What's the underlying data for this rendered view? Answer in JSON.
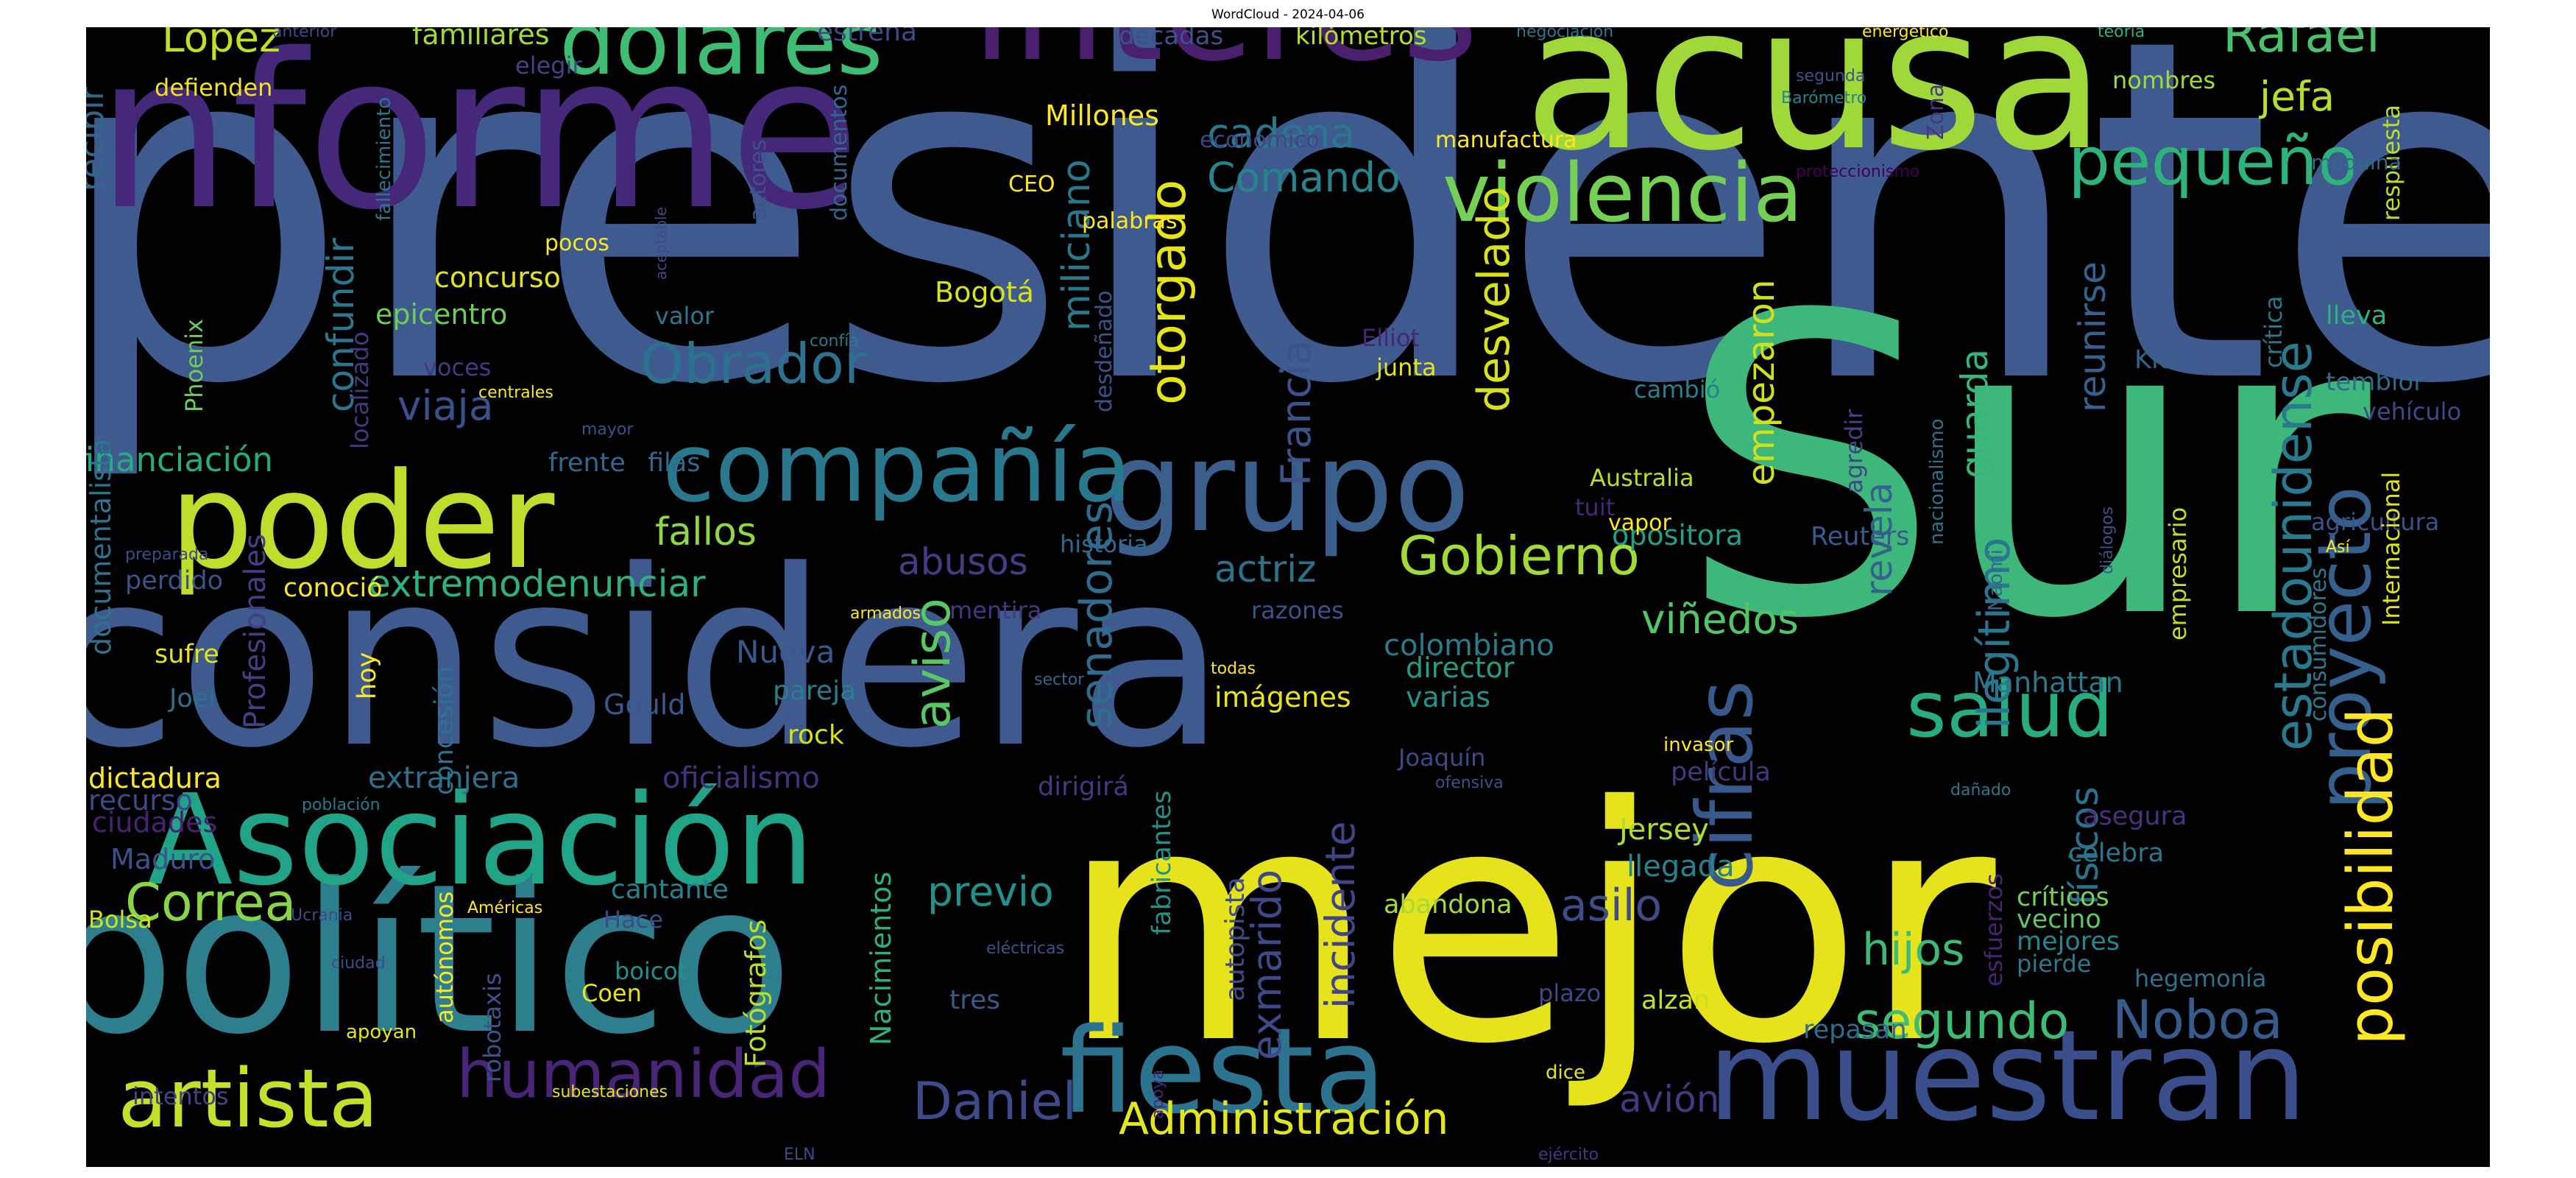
{
  "title": "WordCloud - 2024-04-06",
  "background": "#000000",
  "words": [
    {
      "text": "presidente",
      "color": "#3f5a8f"
    },
    {
      "text": "Sur",
      "color": "#3db87a"
    },
    {
      "text": "mejor",
      "color": "#e6e21b"
    },
    {
      "text": "considera",
      "color": "#3e5a8e"
    },
    {
      "text": "político",
      "color": "#2e7f8e"
    },
    {
      "text": "informe",
      "color": "#46287a"
    },
    {
      "text": "acusa",
      "color": "#a0d83a"
    },
    {
      "text": "interés",
      "color": "#4a1f6e"
    },
    {
      "text": "muestran",
      "color": "#3a4e8c"
    },
    {
      "text": "poder",
      "color": "#bede2d"
    },
    {
      "text": "Asociación",
      "color": "#20a386"
    },
    {
      "text": "grupo",
      "color": "#3a5f8d"
    },
    {
      "text": "fiesta",
      "color": "#2b738e"
    },
    {
      "text": "compañía",
      "color": "#2a788e"
    },
    {
      "text": "dólares",
      "color": "#3fbc73"
    },
    {
      "text": "violencia",
      "color": "#74d055"
    },
    {
      "text": "artista",
      "color": "#c4e02a"
    },
    {
      "text": "humanidad",
      "color": "#482576"
    },
    {
      "text": "salud",
      "color": "#27ad81"
    },
    {
      "text": "cifras",
      "color": "#38598c"
    },
    {
      "text": "pequeño",
      "color": "#2eb37c"
    },
    {
      "text": "proyecto",
      "color": "#35608d"
    },
    {
      "text": "posibilidad",
      "color": "#fde725"
    },
    {
      "text": "Administración",
      "color": "#e1e61d"
    },
    {
      "text": "Obrador",
      "color": "#2c718e"
    },
    {
      "text": "Gobierno",
      "color": "#a2da37"
    },
    {
      "text": "Noboa",
      "color": "#365c8d"
    },
    {
      "text": "Daniel",
      "color": "#3e4a89"
    },
    {
      "text": "estadounidense",
      "color": "#297a8e"
    },
    {
      "text": "Correa",
      "color": "#89d548"
    },
    {
      "text": "otorgado",
      "color": "#e5e419"
    },
    {
      "text": "Rafael",
      "color": "#4ac16d"
    },
    {
      "text": "segundo",
      "color": "#3dbc74"
    },
    {
      "text": "aviso",
      "color": "#58c765"
    },
    {
      "text": "desvelado",
      "color": "#d8e219"
    },
    {
      "text": "ilegítimo",
      "color": "#2a768e"
    },
    {
      "text": "senadores",
      "color": "#2f6c8e"
    },
    {
      "text": "extremodenunciar",
      "color": "#2db27d"
    },
    {
      "text": "López",
      "color": "#c2df23"
    },
    {
      "text": "hijos",
      "color": "#3bbb75"
    },
    {
      "text": "asilo",
      "color": "#3e4c8a"
    },
    {
      "text": "incidente",
      "color": "#414487"
    },
    {
      "text": "exmarido",
      "color": "#3e4989"
    },
    {
      "text": "previo",
      "color": "#21918c"
    },
    {
      "text": "Comando",
      "color": "#25848e"
    },
    {
      "text": "cadena",
      "color": "#2a788e"
    },
    {
      "text": "viñedos",
      "color": "#52c569"
    },
    {
      "text": "fallos",
      "color": "#8fd744"
    },
    {
      "text": "abusos",
      "color": "#433d84"
    },
    {
      "text": "actriz",
      "color": "#2c728e"
    },
    {
      "text": "viaja",
      "color": "#3b518b"
    },
    {
      "text": "jefa",
      "color": "#b5de2b"
    },
    {
      "text": "avión",
      "color": "#453781"
    },
    {
      "text": "revela",
      "color": "#33638d"
    },
    {
      "text": "guarda",
      "color": "#35b779"
    },
    {
      "text": "físicos",
      "color": "#2d708e"
    },
    {
      "text": "Francia",
      "color": "#3b528b"
    },
    {
      "text": "miliciano",
      "color": "#2a788e"
    },
    {
      "text": "confundir",
      "color": "#2a778e"
    },
    {
      "text": "empezaron",
      "color": "#d0e11c"
    },
    {
      "text": "reunirse",
      "color": "#34618d"
    },
    {
      "text": "financiación",
      "color": "#25ac82"
    },
    {
      "text": "recibir",
      "color": "#31668e"
    },
    {
      "text": "Nueva",
      "color": "#38598c"
    },
    {
      "text": "oficialismo",
      "color": "#46327e"
    },
    {
      "text": "colombiano",
      "color": "#287c8e"
    },
    {
      "text": "extranjera",
      "color": "#2d708e"
    },
    {
      "text": "Jersey",
      "color": "#b2dd2d"
    },
    {
      "text": "llegada",
      "color": "#26828e"
    },
    {
      "text": "dictadura",
      "color": "#fde725"
    },
    {
      "text": "ciudades",
      "color": "#482173"
    },
    {
      "text": "epicentro",
      "color": "#6ccd5a"
    },
    {
      "text": "concurso",
      "color": "#e5e419"
    },
    {
      "text": "Bogotá",
      "color": "#d8e219"
    },
    {
      "text": "Millones",
      "color": "#fde725"
    },
    {
      "text": "imágenes",
      "color": "#e7e419"
    },
    {
      "text": "varias",
      "color": "#20938c"
    },
    {
      "text": "director",
      "color": "#1f9f88"
    },
    {
      "text": "Manhattan",
      "color": "#2a788e"
    },
    {
      "text": "opositora",
      "color": "#1fa088"
    },
    {
      "text": "Gould",
      "color": "#38598c"
    },
    {
      "text": "pareja",
      "color": "#277f8e"
    },
    {
      "text": "rock",
      "color": "#d5e21a"
    },
    {
      "text": "Maduro",
      "color": "#3b528b"
    },
    {
      "text": "Bolsa",
      "color": "#d2e21b"
    },
    {
      "text": "recurso",
      "color": "#3e4989"
    },
    {
      "text": "sufre",
      "color": "#e5e419"
    },
    {
      "text": "Joel",
      "color": "#2c728e"
    },
    {
      "text": "perdido",
      "color": "#3b528b"
    },
    {
      "text": "conoció",
      "color": "#fde725"
    },
    {
      "text": "hoy",
      "color": "#fde725"
    },
    {
      "text": "frente",
      "color": "#31688e"
    },
    {
      "text": "filas",
      "color": "#31688e"
    },
    {
      "text": "documentalista",
      "color": "#2b748e"
    },
    {
      "text": "Profesionales",
      "color": "#433e85"
    },
    {
      "text": "concesión",
      "color": "#2c728e"
    },
    {
      "text": "Nacimientos",
      "color": "#2db27d"
    },
    {
      "text": "Fotógrafos",
      "color": "#b8de29"
    },
    {
      "text": "cantante",
      "color": "#26828e"
    },
    {
      "text": "Hace",
      "color": "#3e4a89"
    },
    {
      "text": "Coen",
      "color": "#e7e419"
    },
    {
      "text": "boicot",
      "color": "#21918c"
    },
    {
      "text": "robotaxis",
      "color": "#3b528b"
    },
    {
      "text": "autónomos",
      "color": "#fde725"
    },
    {
      "text": "Américas",
      "color": "#fde725"
    },
    {
      "text": "tres",
      "color": "#38598c"
    },
    {
      "text": "autopista",
      "color": "#3e4c8a"
    },
    {
      "text": "fabricantes",
      "color": "#21918c"
    },
    {
      "text": "dirigirá",
      "color": "#453781"
    },
    {
      "text": "abandona",
      "color": "#a5db36"
    },
    {
      "text": "alzan",
      "color": "#c8e020"
    },
    {
      "text": "plazo",
      "color": "#3e4989"
    },
    {
      "text": "repasan",
      "color": "#2f6c8e"
    },
    {
      "text": "pierde",
      "color": "#2a788e"
    },
    {
      "text": "mejores",
      "color": "#24868e"
    },
    {
      "text": "críticos",
      "color": "#75d054"
    },
    {
      "text": "vecino",
      "color": "#5ec962"
    },
    {
      "text": "celebra",
      "color": "#2a778e"
    },
    {
      "text": "asegura",
      "color": "#46327e"
    },
    {
      "text": "hegemonía",
      "color": "#2c718e"
    },
    {
      "text": "empresario",
      "color": "#bddf26"
    },
    {
      "text": "consumidores",
      "color": "#2a788e"
    },
    {
      "text": "agricultura",
      "color": "#3b528b"
    },
    {
      "text": "Internacional",
      "color": "#dde318"
    },
    {
      "text": "respuesta",
      "color": "#b8de29"
    },
    {
      "text": "temblor",
      "color": "#31688e"
    },
    {
      "text": "vehículo",
      "color": "#3e4a89"
    },
    {
      "text": "lleva",
      "color": "#2db27d"
    },
    {
      "text": "crítica",
      "color": "#2a788e"
    },
    {
      "text": "Klein",
      "color": "#33638d"
    },
    {
      "text": "agredir",
      "color": "#414487"
    },
    {
      "text": "cambió",
      "color": "#26828e"
    },
    {
      "text": "Australia",
      "color": "#b5de2b"
    },
    {
      "text": "tuit",
      "color": "#482677"
    },
    {
      "text": "vapor",
      "color": "#fde725"
    },
    {
      "text": "Reuters",
      "color": "#38598c"
    },
    {
      "text": "Joaquín",
      "color": "#3e4989"
    },
    {
      "text": "película",
      "color": "#453781"
    },
    {
      "text": "invasor",
      "color": "#fde725"
    },
    {
      "text": "Naomi",
      "color": "#31688e"
    },
    {
      "text": "nacionalismo",
      "color": "#2d708e"
    },
    {
      "text": "diálogos",
      "color": "#3b528b"
    },
    {
      "text": "Así",
      "color": "#fde725"
    },
    {
      "text": "dañado",
      "color": "#2a788e"
    },
    {
      "text": "esfuerzos",
      "color": "#482475"
    },
    {
      "text": "máquina",
      "color": "#31688e"
    },
    {
      "text": "teoría",
      "color": "#2db27d"
    },
    {
      "text": "energético",
      "color": "#fde725"
    },
    {
      "text": "negociación",
      "color": "#2a788e"
    },
    {
      "text": "Barómetro",
      "color": "#26828e"
    },
    {
      "text": "segunda",
      "color": "#3b528b"
    },
    {
      "text": "nombres",
      "color": "#a2da37"
    },
    {
      "text": "Zona",
      "color": "#453781"
    },
    {
      "text": "proteccionismo",
      "color": "#440154"
    },
    {
      "text": "manufactura",
      "color": "#fde725"
    },
    {
      "text": "económico",
      "color": "#414487"
    },
    {
      "text": "kilómetros",
      "color": "#b5de2b"
    },
    {
      "text": "décadas",
      "color": "#3b528b"
    },
    {
      "text": "estrena",
      "color": "#3e4989"
    },
    {
      "text": "familiares",
      "color": "#a2da37"
    },
    {
      "text": "anterior",
      "color": "#3e4a89"
    },
    {
      "text": "elegir",
      "color": "#414487"
    },
    {
      "text": "defienden",
      "color": "#f1e51d"
    },
    {
      "text": "fallecimiento",
      "color": "#2a788e"
    },
    {
      "text": "aceptable",
      "color": "#3e4989"
    },
    {
      "text": "actores",
      "color": "#3b528b"
    },
    {
      "text": "pocos",
      "color": "#fde725"
    },
    {
      "text": "documentos",
      "color": "#31688e"
    },
    {
      "text": "CEO",
      "color": "#fde725"
    },
    {
      "text": "palabras",
      "color": "#fde725"
    },
    {
      "text": "valor",
      "color": "#2a788e"
    },
    {
      "text": "confía",
      "color": "#2a788e"
    },
    {
      "text": "desdeñado",
      "color": "#3b528b"
    },
    {
      "text": "Elliot",
      "color": "#482677"
    },
    {
      "text": "junta",
      "color": "#e5e419"
    },
    {
      "text": "voces",
      "color": "#443983"
    },
    {
      "text": "centrales",
      "color": "#fde725"
    },
    {
      "text": "localizado",
      "color": "#453781"
    },
    {
      "text": "Phoenix",
      "color": "#6ccd5a"
    },
    {
      "text": "mayor",
      "color": "#3b528b"
    },
    {
      "text": "historia",
      "color": "#31688e"
    },
    {
      "text": "armados",
      "color": "#fde725"
    },
    {
      "text": "mentira",
      "color": "#453781"
    },
    {
      "text": "razones",
      "color": "#3b528b"
    },
    {
      "text": "preparada",
      "color": "#3e4a89"
    },
    {
      "text": "sector",
      "color": "#31688e"
    },
    {
      "text": "todas",
      "color": "#fde725"
    },
    {
      "text": "ofensiva",
      "color": "#3b528b"
    },
    {
      "text": "población",
      "color": "#2a788e"
    },
    {
      "text": "Ucrania",
      "color": "#3e4a89"
    },
    {
      "text": "ciudad",
      "color": "#3e4c8a"
    },
    {
      "text": "eléctricas",
      "color": "#3b528b"
    },
    {
      "text": "apoyan",
      "color": "#e5e419"
    },
    {
      "text": "intentos",
      "color": "#414487"
    },
    {
      "text": "subestaciones",
      "color": "#e5e419"
    },
    {
      "text": "apoya",
      "color": "#482677"
    },
    {
      "text": "ELN",
      "color": "#3e4a89"
    },
    {
      "text": "ejército",
      "color": "#453781"
    },
    {
      "text": "dice",
      "color": "#e5e419"
    }
  ]
}
